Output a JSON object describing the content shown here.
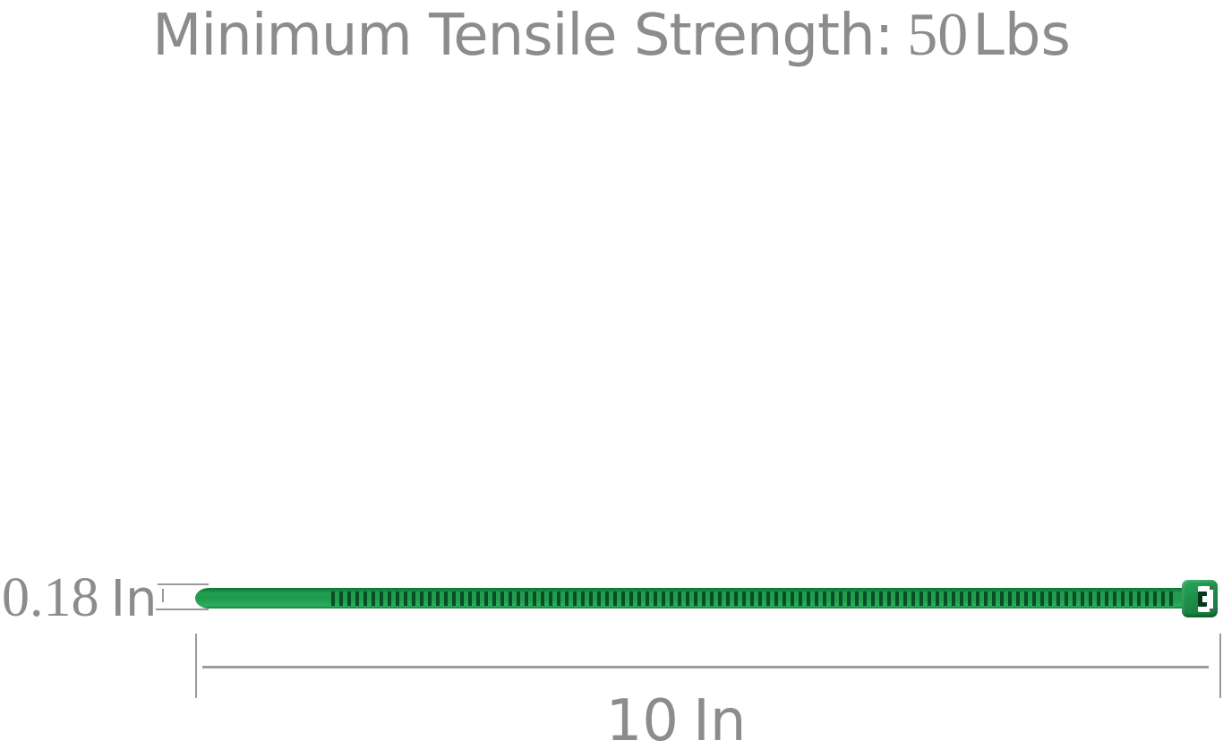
{
  "title": {
    "text": "Minimum Tensile Strength:",
    "value": "50",
    "unit": "Lbs"
  },
  "dimensions": {
    "width": {
      "value": "0.18",
      "unit": "In"
    },
    "length": {
      "value": "10",
      "unit": "In"
    }
  },
  "illustration": {
    "name": "green-nylon-cable-tie",
    "parts": [
      "tapered-tip",
      "smooth-strap",
      "toothed-strap",
      "locking-head-with-pawl"
    ]
  },
  "colors": {
    "background": "#ffffff",
    "text_gray": "#8c8c8c",
    "dimension_line": "#9a9a9a",
    "tie_green_main": "#1f9b4d",
    "tie_green_dark": "#0b5e2c",
    "tie_green_light": "#2fae5f",
    "tie_head": "#1c8f49",
    "tie_pawl_dark": "#06381b"
  }
}
